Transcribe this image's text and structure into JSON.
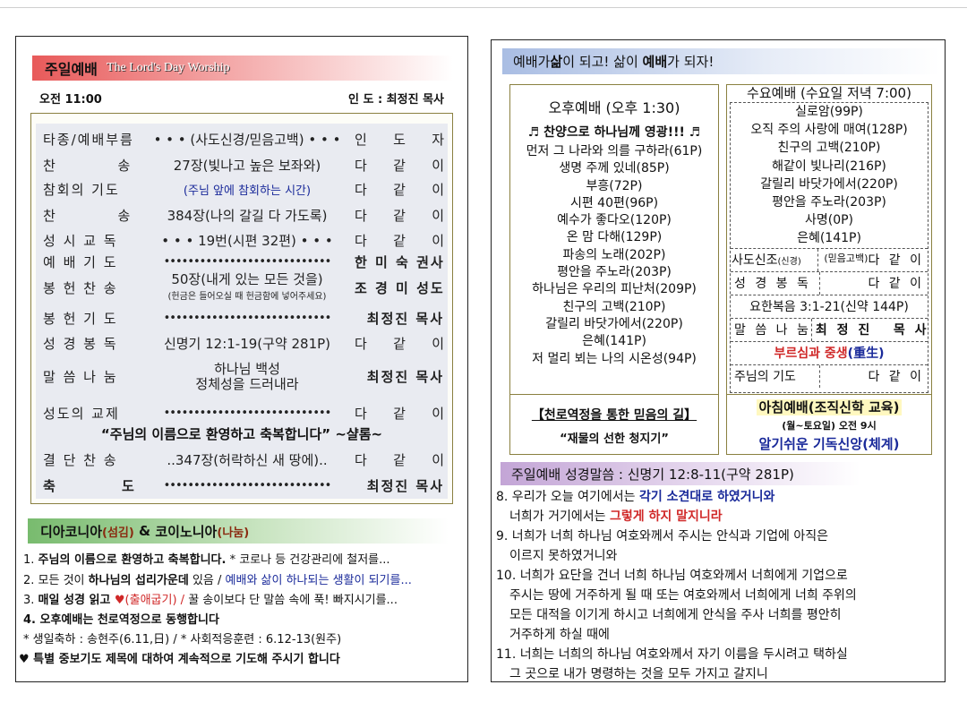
{
  "left": {
    "banner": {
      "korean": "주일예배",
      "english": "The Lord's Day Worship"
    },
    "time": "오전 11:00",
    "leader": "인 도 :  최정진 목사",
    "order": [
      {
        "label": "타종/예배부름",
        "content": "• • •  (사도신경/믿음고백) • • •",
        "person": [
          "인",
          "도",
          "자"
        ]
      },
      {
        "label": "찬          송",
        "content": "27장(빛나고 높은 보좌와)",
        "person": [
          "다",
          "같",
          "이"
        ]
      },
      {
        "label": "참회의 기도",
        "content": "(주님 앞에 참회하는 시간)",
        "person": [
          "다",
          "같",
          "이"
        ]
      },
      {
        "label": "찬          송",
        "content": "384장(나의 갈길 다 가도록)",
        "person": [
          "다",
          "같",
          "이"
        ]
      },
      {
        "label": "성 시 교 독",
        "content": "• • •  19번(시편 32편)  • • •",
        "person": [
          "다",
          "같",
          "이"
        ]
      },
      {
        "label": "예 배 기 도",
        "content": "••••••••••••••••••••••••••••",
        "person_text": "한 미 숙 권사"
      },
      {
        "label": "봉 헌 찬 송",
        "content": "50장(내게 있는 모든 것을)",
        "content_note": "(헌금은 들어오실 때 헌금함에 넣어주세요)",
        "person_text": "조 경 미 성도"
      },
      {
        "label": "봉 헌 기 도",
        "content": "••••••••••••••••••••••••••••",
        "person_text": "최정진 목사"
      },
      {
        "label": "성 경 봉 독",
        "content": "신명기  12:1-19(구약 281P)",
        "person": [
          "다",
          "같",
          "이"
        ]
      },
      {
        "label": "말 씀 나 눔",
        "content": "하나님 백성",
        "content_line2": "정체성을 드러내라",
        "person_text": "최정진 목사"
      },
      {
        "label": "성도의 교제",
        "content": "••••••••••••••••••••••••••••",
        "person": [
          "다",
          "같",
          "이"
        ]
      },
      {
        "quote": "“주님의 이름으로 환영하고 축복합니다” ~샬롬~"
      },
      {
        "label": "결 단 찬 송",
        "content": "..347장(허락하신 새 땅에)..",
        "person": [
          "다",
          "같",
          "이"
        ]
      },
      {
        "label": "축          도",
        "content": "••••••••••••••••••••••••••••",
        "person_text": "최정진 목사"
      }
    ],
    "news_banner": {
      "diakonia": "디아코니아",
      "diakonia_sub": "(섬김)",
      "amp": " & ",
      "koinonia": "코이노니아",
      "koinonia_sub": "(나눔)"
    },
    "news": {
      "n1": {
        "num": "1. ",
        "bold": "주님의 이름으로 환영하고 축복합니다.",
        "rest": " * 코로나 등 건강관리에 철저를..."
      },
      "n2": {
        "num": "2. ",
        "a": "모든 것이 ",
        "bold": "하나님의 섭리가운데",
        "b": " 있음 / ",
        "blue": "예배와 삶이 하나되는 생활이 되기를..."
      },
      "n3": {
        "num": "3. ",
        "bold": "매일 성경 읽고 ",
        "heart": "♥",
        "red": "(출애굽기) / ",
        "rest": "꿀 송이보다 단 말씀 속에 푹! 빠지시기를..."
      },
      "n4": {
        "num": "4. ",
        "bold": "오후예배는 천로역정으로 동행합니다"
      },
      "n5": "* 생일축하 : 송현주(6.11,日) / * 사회적응훈련 : 6.12-13(원주)",
      "n6": {
        "heart": "♥",
        "text": " 특별 중보기도 제목에 대하여 계속적으로 기도해 주시기 합니다"
      }
    }
  },
  "right": {
    "banner": {
      "p1": "예배가 ",
      "p2": "삶",
      "p3": "이 되고! 삶이 ",
      "p4": "예배",
      "p5": "가 되자!"
    },
    "afternoon": {
      "title": "오후예배 (오후 1:30)",
      "subtitle": "♬ 찬양으로 하나님께 영광!!! ♬",
      "songs": [
        "먼저 그 나라와 의를 구하라(61P)",
        "생명 주께 있네(85P)",
        "부흥(72P)",
        "시편 40편(96P)",
        "예수가 좋다오(120P)",
        "온 맘 다해(129P)",
        "파송의 노래(202P)",
        "평안을 주노라(203P)",
        "하나님은 우리의 피난처(209P)",
        "친구의 고백(210P)",
        "갈릴리 바닷가에서(220P)",
        "은혜(141P)",
        "저 멀리 뵈는 나의 시온성(94P)"
      ],
      "study_title": "【천로역정을 통한 믿음의 길】",
      "study_subtitle": "“재물의 선한 청지기”"
    },
    "wednesday": {
      "title": "수요예배 (수요일 저녁 7:00)",
      "songs": [
        "실로암(99P)",
        "오직 주의 사랑에 매여(128P)",
        "친구의 고백(210P)",
        "해같이 빛나리(216P)",
        "갈릴리 바닷가에서(220P)",
        "평안을 주노라(203P)",
        "사명(0P)",
        "은혜(141P)"
      ],
      "creed_label": "사도신조",
      "creed_sub": "(신경)",
      "creed_mid": "(믿음고백)",
      "creed_person": "다 같 이",
      "reading_label": "성 경 봉 독",
      "reading_person": "다 같 이",
      "reading_text": "요한복음 3:1-21(신약 144P)",
      "sermon_label": "말 씀 나 눔",
      "sermon_person": "최 정 진   목 사",
      "sermon_title_red": "부르심과 중생",
      "sermon_title_blue": "(重生)",
      "prayer_label": "주님의 기도",
      "prayer_person": "다 같 이"
    },
    "morning": {
      "title": "아침예배(조직신학 교육)",
      "time": "(월~토요일) 오전 9시",
      "subject": "알기쉬운 기독신앙(체계)"
    },
    "scripture": {
      "banner": "주일예배 성경말씀 : 신명기 12:8-11(구약 281P)",
      "v8a": "8. 우리가 오늘 여기에서는 ",
      "v8a_blue": "각기 소견대로 하였거니와",
      "v8b": "너희가 거기에서는 ",
      "v8b_red": "그렇게 하지 말지니라",
      "lines": [
        "9. 너희가 너희 하나님 여호와께서 주시는 안식과 기업에 아직은",
        "이르지 못하였거니와",
        "10. 너희가 요단을 건너 너희 하나님 여호와께서 너희에게 기업으로",
        "주시는 땅에 거주하게 될 때 또는 여호와께서 너희에게 너희 주위의",
        "모든 대적을 이기게 하시고 너희에게 안식을 주사 너희를 평안히",
        "거주하게 하실 때에",
        "11. 너희는 너희의 하나님 여호와께서 자기 이름을 두시려고 택하실",
        "그 곳으로 내가 명령하는 것을 모두 가지고 갈지니"
      ]
    }
  }
}
